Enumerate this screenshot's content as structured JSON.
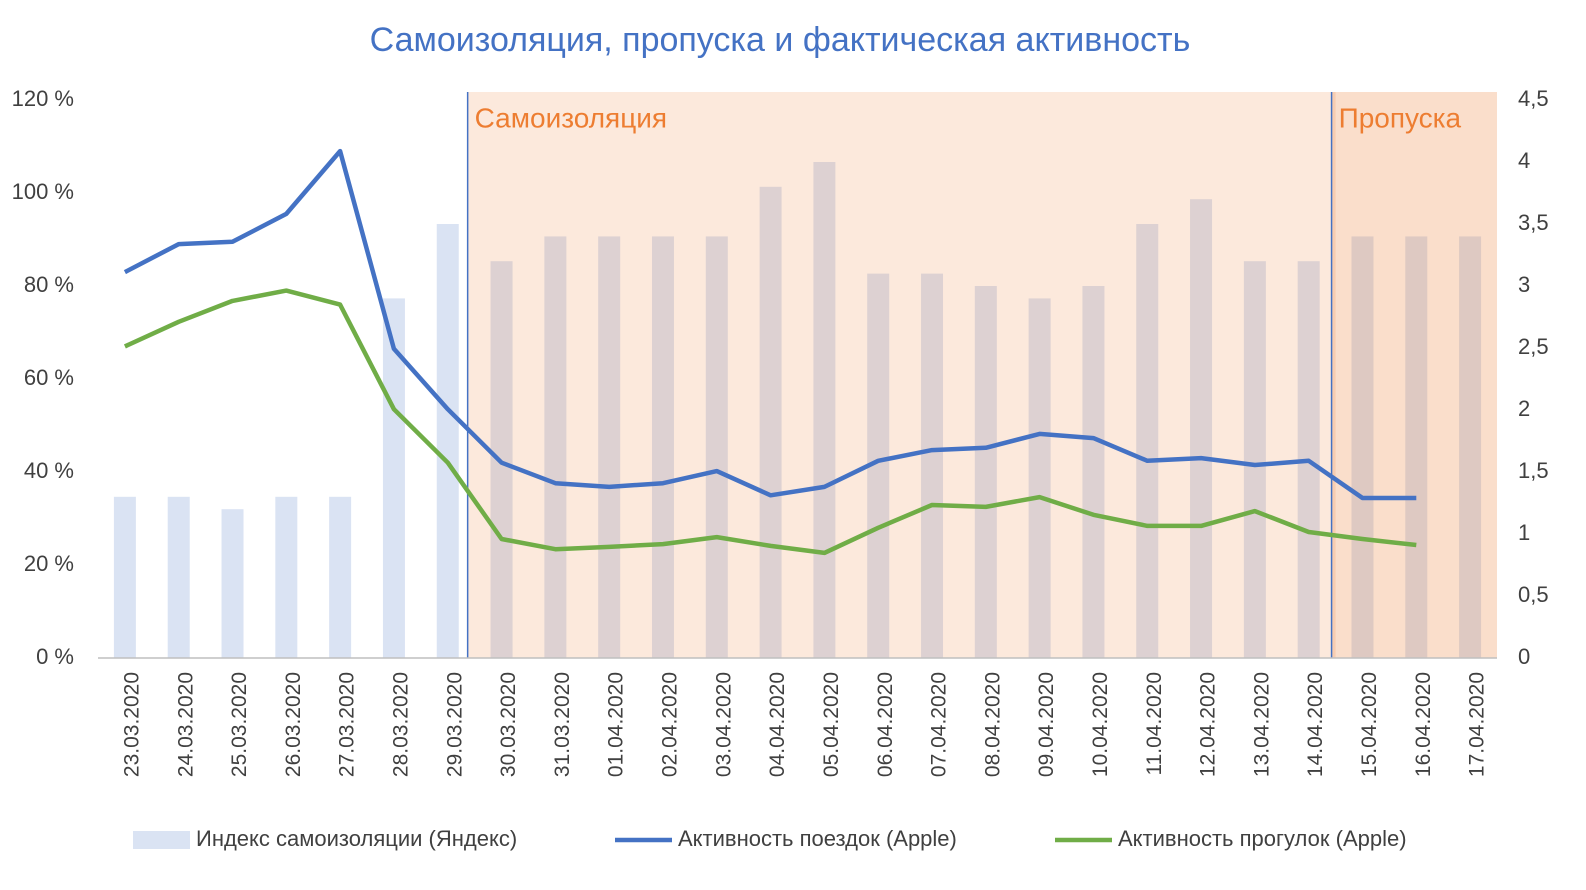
{
  "chart_data": {
    "type": "bar-line",
    "title": "Самоизоляция, пропуска и фактическая активность",
    "categories": [
      "23.03.2020",
      "24.03.2020",
      "25.03.2020",
      "26.03.2020",
      "27.03.2020",
      "28.03.2020",
      "29.03.2020",
      "30.03.2020",
      "31.03.2020",
      "01.04.2020",
      "02.04.2020",
      "03.04.2020",
      "04.04.2020",
      "05.04.2020",
      "06.04.2020",
      "07.04.2020",
      "08.04.2020",
      "09.04.2020",
      "10.04.2020",
      "11.04.2020",
      "12.04.2020",
      "13.04.2020",
      "14.04.2020",
      "15.04.2020",
      "16.04.2020",
      "17.04.2020"
    ],
    "series": [
      {
        "name": "Индекс самоизоляции (Яндекс)",
        "type": "bar",
        "axis": "y2",
        "color": "#dae3f3",
        "values": [
          1.3,
          1.3,
          1.2,
          1.3,
          1.3,
          2.9,
          3.5,
          3.2,
          3.4,
          3.4,
          3.4,
          3.4,
          3.8,
          4.0,
          3.1,
          3.1,
          3.0,
          2.9,
          3.0,
          3.5,
          3.7,
          3.2,
          3.2,
          3.4,
          3.4,
          3.4
        ]
      },
      {
        "name": "Активность поездок (Apple)",
        "type": "line",
        "color": "#4472c4",
        "values": [
          83,
          89,
          89.5,
          95.5,
          109,
          66.5,
          53.5,
          42,
          37.6,
          36.8,
          37.6,
          40.2,
          35,
          36.8,
          42.4,
          44.7,
          45.2,
          48.2,
          47.3,
          42.4,
          43,
          41.5,
          42.4,
          34.4,
          34.4,
          null
        ]
      },
      {
        "name": "Активность прогулок (Apple)",
        "type": "line",
        "color": "#70ad47",
        "values": [
          67,
          72.3,
          76.8,
          79,
          76,
          53.5,
          42,
          25.6,
          23.4,
          23.9,
          24.5,
          26,
          24.1,
          22.6,
          28,
          32.9,
          32.5,
          34.6,
          30.8,
          28.4,
          28.4,
          31.6,
          27.1,
          25.6,
          24.3,
          null
        ]
      }
    ],
    "ylim": [
      0,
      120
    ],
    "yticks": [
      {
        "value": 0,
        "label": "0 %"
      },
      {
        "value": 20,
        "label": "20 %"
      },
      {
        "value": 40,
        "label": "40 %"
      },
      {
        "value": 60,
        "label": "60 %"
      },
      {
        "value": 80,
        "label": "80 %"
      },
      {
        "value": 100,
        "label": "100 %"
      },
      {
        "value": 120,
        "label": "120 %"
      }
    ],
    "y2lim": [
      0,
      4.5
    ],
    "y2ticks": [
      0,
      {
        "value": 0.5,
        "label": "0,5"
      },
      1,
      {
        "value": 1.5,
        "label": "1,5"
      },
      2,
      {
        "value": 2.5,
        "label": "2,5"
      },
      3,
      {
        "value": 3.5,
        "label": "3,5"
      },
      4,
      {
        "value": 4.5,
        "label": "4,5"
      }
    ],
    "annotations": [
      {
        "text": "Самоизоляция",
        "from": "30.03.2020",
        "to": "14.04.2020",
        "color": "#ed7d31"
      },
      {
        "text": "Пропуска",
        "from": "15.04.2020",
        "to": "17.04.2020",
        "color": "#ed7d31"
      }
    ],
    "legend": "bottom"
  }
}
